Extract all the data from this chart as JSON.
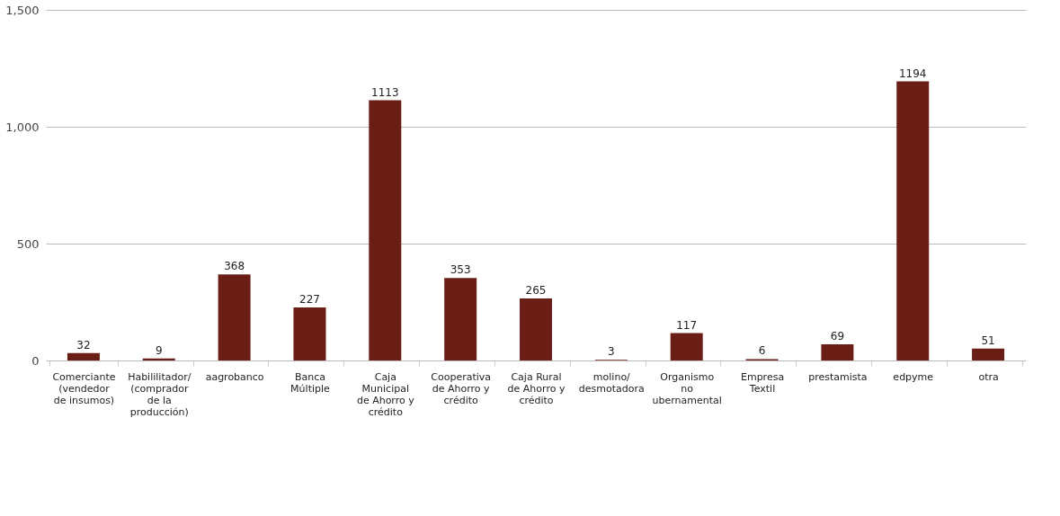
{
  "chart_data": {
    "type": "bar",
    "categories": [
      "Comerciante (vendedor de insumos)",
      "Habililitador/ (comprador de la producción)",
      "aagrobanco",
      "Banca Múltiple",
      "Caja Municipal de Ahorro y crédito",
      "Cooperativa de Ahorro y crédito",
      "Caja Rural de Ahorro y crédito",
      "molino/desmotadora",
      "Organismo no ubernamental",
      "Empresa Textil",
      "prestamista",
      "edpyme",
      "otra"
    ],
    "values": [
      32,
      9,
      368,
      227,
      1113,
      353,
      265,
      3,
      117,
      6,
      69,
      1194,
      51
    ],
    "color": "#6b1e16",
    "ylim": [
      0,
      1500
    ],
    "yticks": [
      0,
      {
        "value": 500,
        "label": "500"
      },
      {
        "value": 1000,
        "label": "1,000"
      },
      {
        "value": 1500,
        "label": "1,500"
      }
    ],
    "grid": "y",
    "data_labels": true
  }
}
